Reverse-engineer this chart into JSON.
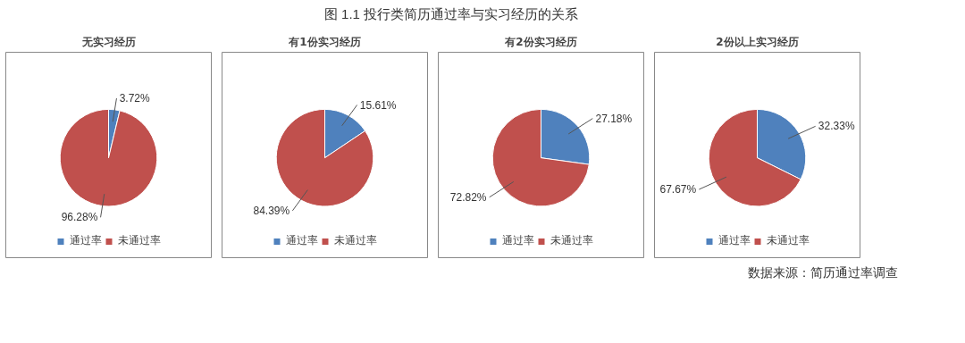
{
  "chart_data": [
    {
      "type": "pie",
      "title": "无实习经历",
      "categories": [
        "通过率",
        "未通过率"
      ],
      "values": [
        3.72,
        96.28
      ],
      "value_labels": [
        "3.72%",
        "96.28%"
      ],
      "colors": [
        "#4f81bd",
        "#c0504d"
      ],
      "legend": "bottom",
      "annotations": [
        "图 1.1  投行类简历通过率与实习经历的关系",
        "数据来源：简历通过率调查"
      ]
    },
    {
      "type": "pie",
      "title": "有1份实习经历",
      "categories": [
        "通过率",
        "未通过率"
      ],
      "values": [
        15.61,
        84.39
      ],
      "value_labels": [
        "15.61%",
        "84.39%"
      ],
      "colors": [
        "#4f81bd",
        "#c0504d"
      ],
      "legend": "bottom"
    },
    {
      "type": "pie",
      "title": "有2份实习经历",
      "categories": [
        "通过率",
        "未通过率"
      ],
      "values": [
        27.18,
        72.82
      ],
      "value_labels": [
        "27.18%",
        "72.82%"
      ],
      "colors": [
        "#4f81bd",
        "#c0504d"
      ],
      "legend": "bottom"
    },
    {
      "type": "pie",
      "title": "2份以上实习经历",
      "categories": [
        "通过率",
        "未通过率"
      ],
      "values": [
        32.33,
        67.67
      ],
      "value_labels": [
        "32.33%",
        "67.67%"
      ],
      "colors": [
        "#4f81bd",
        "#c0504d"
      ],
      "legend": "bottom"
    }
  ]
}
